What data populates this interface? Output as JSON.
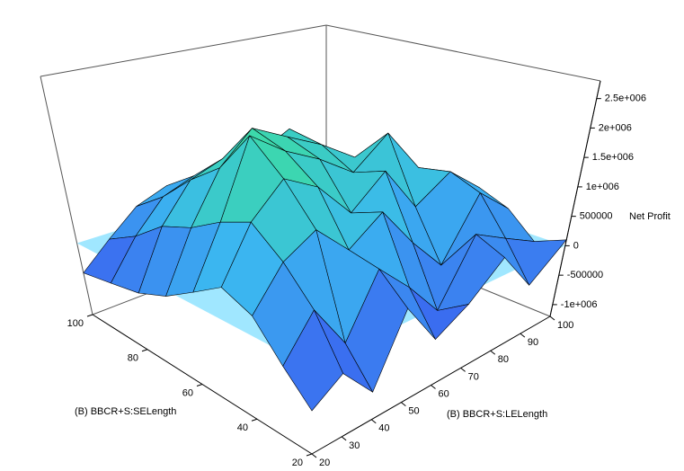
{
  "chart_data": {
    "type": "surface3d",
    "x_label": "(B) BBCR+S:SELength",
    "y_label": "(B) BBCR+S:LELength",
    "z_label": "Net Profit",
    "x": [
      20,
      30,
      40,
      50,
      60,
      70,
      80,
      90,
      100
    ],
    "y": [
      20,
      30,
      40,
      50,
      60,
      70,
      80,
      90,
      100
    ],
    "z": [
      [
        -600000,
        -300000,
        -800000,
        200000,
        -500000,
        -200000,
        300000,
        -400000,
        100000
      ],
      [
        -200000,
        400000,
        -300000,
        600000,
        100000,
        -500000,
        500000,
        200000,
        -100000
      ],
      [
        300000,
        900000,
        1200000,
        700000,
        1100000,
        400000,
        -200000,
        800000,
        300000
      ],
      [
        500000,
        1300000,
        1800000,
        1500000,
        900000,
        1400000,
        600000,
        1000000,
        500000
      ],
      [
        200000,
        1100000,
        2300000,
        1900000,
        1600000,
        1200000,
        1700000,
        900000,
        400000
      ],
      [
        -100000,
        800000,
        1600000,
        2100000,
        1800000,
        1500000,
        1100000,
        700000,
        200000
      ],
      [
        -300000,
        600000,
        1200000,
        1400000,
        1300000,
        1600000,
        900000,
        500000,
        0
      ],
      [
        -400000,
        200000,
        700000,
        900000,
        1000000,
        800000,
        600000,
        300000,
        -200000
      ],
      [
        -500000,
        -100000,
        300000,
        500000,
        400000,
        600000,
        200000,
        -100000,
        -300000
      ]
    ],
    "xlim": [
      20,
      100
    ],
    "ylim": [
      20,
      100
    ],
    "zlim": [
      -1200000,
      2800000
    ],
    "xticks": [
      20,
      40,
      60,
      80,
      100
    ],
    "yticks": [
      20,
      30,
      40,
      50,
      60,
      70,
      80,
      90,
      100
    ],
    "zticks": [
      {
        "value": -1000000,
        "label": "-1e+006"
      },
      -500000,
      0,
      500000,
      {
        "value": 1000000,
        "label": "1e+006"
      },
      {
        "value": 1500000,
        "label": "1.5e+006"
      },
      {
        "value": 2000000,
        "label": "2e+006"
      },
      {
        "value": 2500000,
        "label": "2.5e+006"
      }
    ],
    "colormap": [
      "#3a2cf0",
      "#3bb8f0",
      "#3cf07a"
    ],
    "zero_plane_color": "#8fe3ff"
  }
}
